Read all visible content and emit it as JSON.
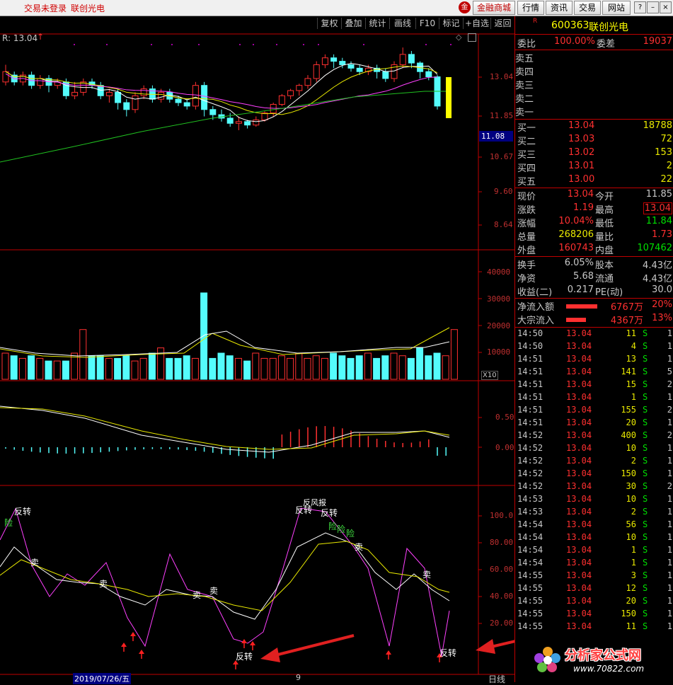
{
  "titlebar": {
    "status": "交易未登录",
    "stock": "联创光电",
    "buttons": [
      "金融商城",
      "行情",
      "资讯",
      "交易",
      "网站"
    ],
    "window_controls": [
      "?",
      "–",
      "×"
    ]
  },
  "toolbar": {
    "items": [
      "复权",
      "叠加",
      "统计",
      "画线",
      "F10",
      "标记",
      "+自选",
      "返回"
    ]
  },
  "price_panel": {
    "legend": "R: 13.04",
    "y_ticks": [
      "13.04",
      "11.85",
      "10.67",
      "9.60",
      "8.64"
    ],
    "current_price_tag": "11.08"
  },
  "volume_panel": {
    "y_ticks": [
      "40000",
      "30000",
      "20000",
      "10000"
    ],
    "unit": "X10"
  },
  "macd_panel": {
    "y_ticks": [
      "0.50",
      "0.00"
    ]
  },
  "kdj_panel": {
    "y_ticks": [
      "100.0",
      "80.00",
      "60.00",
      "40.00",
      "20.00"
    ],
    "signals": {
      "reverse": "反转",
      "sell": "卖",
      "risk": "险",
      "top_label": "反风报"
    }
  },
  "bottom_bar": {
    "date": "2019/07/26/五",
    "marker": "9",
    "period": "日线"
  },
  "quote": {
    "code": "600363",
    "name": "联创光电",
    "wei_bi_label": "委比",
    "wei_bi": "100.00%",
    "wei_cha_label": "委差",
    "wei_cha": "19037",
    "sell_labels": [
      "卖五",
      "卖四",
      "卖三",
      "卖二",
      "卖一"
    ],
    "buy": [
      {
        "label": "买一",
        "price": "13.04",
        "vol": "18788"
      },
      {
        "label": "买二",
        "price": "13.03",
        "vol": "72"
      },
      {
        "label": "买三",
        "price": "13.02",
        "vol": "153"
      },
      {
        "label": "买四",
        "price": "13.01",
        "vol": "2"
      },
      {
        "label": "买五",
        "price": "13.00",
        "vol": "22"
      }
    ],
    "stats": [
      {
        "l1": "现价",
        "v1": "13.04",
        "l2": "今开",
        "v2": "11.85"
      },
      {
        "l1": "涨跌",
        "v1": "1.19",
        "l2": "最高",
        "v2": "13.04"
      },
      {
        "l1": "涨幅",
        "v1": "10.04%",
        "l2": "最低",
        "v2": "11.84"
      },
      {
        "l1": "总量",
        "v1": "268206",
        "l2": "量比",
        "v2": "1.73"
      },
      {
        "l1": "外盘",
        "v1": "160743",
        "l2": "内盘",
        "v2": "107462"
      }
    ],
    "stats2": [
      {
        "l1": "换手",
        "v1": "6.05%",
        "l2": "股本",
        "v2": "4.43亿"
      },
      {
        "l1": "净资",
        "v1": "5.68",
        "l2": "流通",
        "v2": "4.43亿"
      },
      {
        "l1": "收益(二)",
        "v1": "0.217",
        "l2": "PE(动)",
        "v2": "30.0"
      }
    ],
    "flows": [
      {
        "label": "净流入额",
        "value": "6767万",
        "pct": "20%"
      },
      {
        "label": "大宗流入",
        "value": "4367万",
        "pct": "13%"
      }
    ]
  },
  "ticks": [
    {
      "t": "14:50",
      "p": "13.04",
      "v": "11",
      "s": "S",
      "n": "1"
    },
    {
      "t": "14:50",
      "p": "13.04",
      "v": "4",
      "s": "S",
      "n": "1"
    },
    {
      "t": "14:51",
      "p": "13.04",
      "v": "13",
      "s": "S",
      "n": "1"
    },
    {
      "t": "14:51",
      "p": "13.04",
      "v": "141",
      "s": "S",
      "n": "5"
    },
    {
      "t": "14:51",
      "p": "13.04",
      "v": "15",
      "s": "S",
      "n": "2"
    },
    {
      "t": "14:51",
      "p": "13.04",
      "v": "1",
      "s": "S",
      "n": "1"
    },
    {
      "t": "14:51",
      "p": "13.04",
      "v": "155",
      "s": "S",
      "n": "2"
    },
    {
      "t": "14:51",
      "p": "13.04",
      "v": "20",
      "s": "S",
      "n": "1"
    },
    {
      "t": "14:52",
      "p": "13.04",
      "v": "400",
      "s": "S",
      "n": "2"
    },
    {
      "t": "14:52",
      "p": "13.04",
      "v": "10",
      "s": "S",
      "n": "1"
    },
    {
      "t": "14:52",
      "p": "13.04",
      "v": "2",
      "s": "S",
      "n": "1"
    },
    {
      "t": "14:52",
      "p": "13.04",
      "v": "150",
      "s": "S",
      "n": "1"
    },
    {
      "t": "14:52",
      "p": "13.04",
      "v": "30",
      "s": "S",
      "n": "2"
    },
    {
      "t": "14:53",
      "p": "13.04",
      "v": "10",
      "s": "S",
      "n": "1"
    },
    {
      "t": "14:53",
      "p": "13.04",
      "v": "2",
      "s": "S",
      "n": "1"
    },
    {
      "t": "14:54",
      "p": "13.04",
      "v": "56",
      "s": "S",
      "n": "1"
    },
    {
      "t": "14:54",
      "p": "13.04",
      "v": "10",
      "s": "S",
      "n": "1"
    },
    {
      "t": "14:54",
      "p": "13.04",
      "v": "1",
      "s": "S",
      "n": "1"
    },
    {
      "t": "14:54",
      "p": "13.04",
      "v": "1",
      "s": "S",
      "n": "1"
    },
    {
      "t": "14:55",
      "p": "13.04",
      "v": "3",
      "s": "S",
      "n": "1"
    },
    {
      "t": "14:55",
      "p": "13.04",
      "v": "12",
      "s": "S",
      "n": "1"
    },
    {
      "t": "14:55",
      "p": "13.04",
      "v": "20",
      "s": "S",
      "n": "1"
    },
    {
      "t": "14:55",
      "p": "13.04",
      "v": "150",
      "s": "S",
      "n": "1"
    },
    {
      "t": "14:55",
      "p": "13.04",
      "v": "11",
      "s": "S",
      "n": "1"
    }
  ],
  "watermark": {
    "name": "分析家公式网",
    "url": "www.70822.com"
  },
  "colors": {
    "up": "#ff3030",
    "down": "#54fcfc",
    "border": "#c00000",
    "k_line": "#ffffff",
    "d_line": "#e8e800",
    "j_line": "#ff40ff"
  }
}
